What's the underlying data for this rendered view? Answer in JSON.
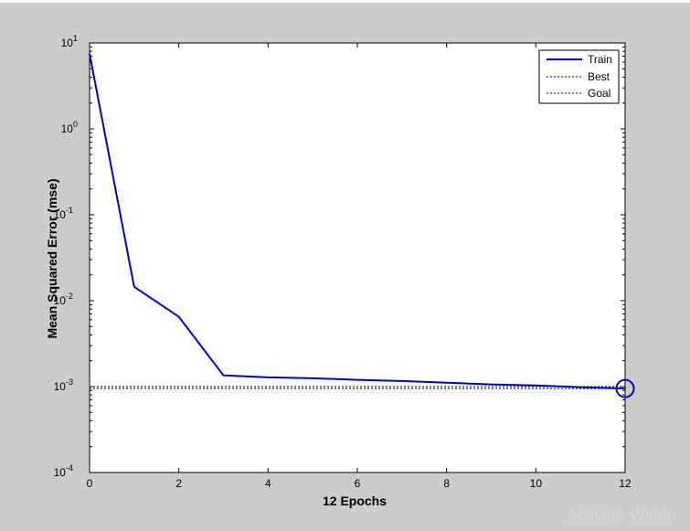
{
  "chart_data": {
    "type": "line",
    "title": "",
    "xlabel": "12 Epochs",
    "ylabel": "Mean Squared Error  (mse)",
    "xlim": [
      0,
      12
    ],
    "ylim": [
      0.0001,
      10
    ],
    "yscale": "log",
    "x_ticks": [
      "0",
      "2",
      "4",
      "6",
      "8",
      "10",
      "12"
    ],
    "y_ticks": [
      {
        "base": "10",
        "exp": "1"
      },
      {
        "base": "10",
        "exp": "0"
      },
      {
        "base": "10",
        "exp": "-1"
      },
      {
        "base": "10",
        "exp": "-2"
      },
      {
        "base": "10",
        "exp": "-3"
      },
      {
        "base": "10",
        "exp": "-4"
      }
    ],
    "legend_position": "top-right",
    "grid": false,
    "series": [
      {
        "name": "Train",
        "style": "solid",
        "color": "#0000cc",
        "x": [
          0,
          1,
          2,
          3,
          4,
          5,
          6,
          7,
          8,
          9,
          10,
          11,
          12
        ],
        "y": [
          7.5,
          0.0145,
          0.0065,
          0.00135,
          0.00128,
          0.00125,
          0.0012,
          0.00116,
          0.00111,
          0.00106,
          0.00103,
          0.000985,
          0.00095
        ]
      },
      {
        "name": "Best",
        "style": "dotted",
        "color": "#000000",
        "best_epoch": 12,
        "best_value": 0.00095
      },
      {
        "name": "Goal",
        "style": "dotted",
        "color": "#000000",
        "value": 0.001
      }
    ]
  },
  "watermark": "Activate Windo"
}
